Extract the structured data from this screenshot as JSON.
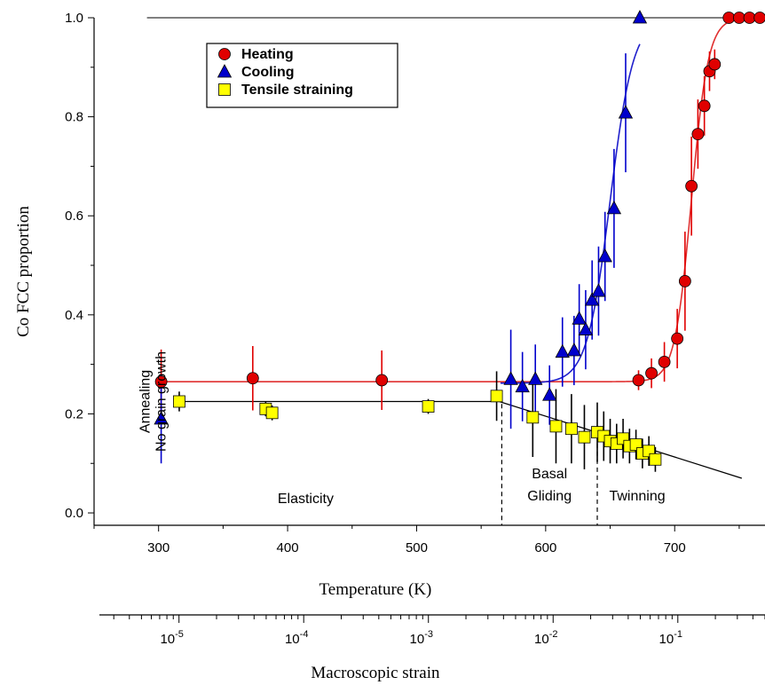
{
  "chart_data": {
    "type": "scatter",
    "ylabel": "Co FCC proportion",
    "xlabel": "Temperature (K)",
    "secondary_xlabel": "Macroscopic strain",
    "xlim": [
      250,
      770
    ],
    "ylim": [
      -0.025,
      1.0
    ],
    "x_ticks": [
      "300",
      "400",
      "500",
      "600",
      "700"
    ],
    "y_ticks": [
      "0.0",
      "0.2",
      "0.4",
      "0.6",
      "0.8",
      "1.0"
    ],
    "strain_ticks": [
      {
        "base": "10",
        "exp": "-5",
        "value": 1e-05
      },
      {
        "base": "10",
        "exp": "-4",
        "value": 0.0001
      },
      {
        "base": "10",
        "exp": "-3",
        "value": 0.001
      },
      {
        "base": "10",
        "exp": "-2",
        "value": 0.01
      },
      {
        "base": "10",
        "exp": "-1",
        "value": 0.1
      }
    ],
    "strain_axis_range": [
      2.3e-06,
      0.5
    ],
    "grid": false,
    "legend_position": "top-left",
    "colors": {
      "heating": "#e00000",
      "cooling": "#0000cc",
      "tensile": "#ffff00",
      "fit_heating": "#e03030",
      "fit_cooling": "#2020cc",
      "fit_tensile": "#000000"
    },
    "series": [
      {
        "name": "Heating",
        "marker": "circle",
        "points": [
          {
            "x": 302,
            "y": 0.265,
            "err": 0.065
          },
          {
            "x": 373,
            "y": 0.272,
            "err": 0.065
          },
          {
            "x": 473,
            "y": 0.268,
            "err": 0.06
          },
          {
            "x": 672,
            "y": 0.268,
            "err": 0.02
          },
          {
            "x": 682,
            "y": 0.282,
            "err": 0.03
          },
          {
            "x": 692,
            "y": 0.305,
            "err": 0.04
          },
          {
            "x": 702,
            "y": 0.352,
            "err": 0.06
          },
          {
            "x": 708,
            "y": 0.468,
            "err": 0.1
          },
          {
            "x": 713,
            "y": 0.66,
            "err": 0.1
          },
          {
            "x": 718,
            "y": 0.765,
            "err": 0.07
          },
          {
            "x": 723,
            "y": 0.822,
            "err": 0.06
          },
          {
            "x": 727,
            "y": 0.892,
            "err": 0.04
          },
          {
            "x": 731,
            "y": 0.906,
            "err": 0.03
          },
          {
            "x": 742,
            "y": 1.0,
            "err": 0
          },
          {
            "x": 750,
            "y": 1.0,
            "err": 0
          },
          {
            "x": 758,
            "y": 1.0,
            "err": 0
          },
          {
            "x": 766,
            "y": 1.0,
            "err": 0
          }
        ]
      },
      {
        "name": "Cooling",
        "marker": "triangle",
        "points": [
          {
            "x": 302,
            "y": 0.19,
            "err": 0.09
          },
          {
            "x": 573,
            "y": 0.27,
            "err": 0.1
          },
          {
            "x": 582,
            "y": 0.255,
            "err": 0.07
          },
          {
            "x": 592,
            "y": 0.27,
            "err": 0.07
          },
          {
            "x": 603,
            "y": 0.238,
            "err": 0.06
          },
          {
            "x": 613,
            "y": 0.325,
            "err": 0.07
          },
          {
            "x": 622,
            "y": 0.328,
            "err": 0.07
          },
          {
            "x": 626,
            "y": 0.392,
            "err": 0.07
          },
          {
            "x": 631,
            "y": 0.37,
            "err": 0.08
          },
          {
            "x": 636,
            "y": 0.43,
            "err": 0.08
          },
          {
            "x": 641,
            "y": 0.448,
            "err": 0.09
          },
          {
            "x": 646,
            "y": 0.518,
            "err": 0.09
          },
          {
            "x": 653,
            "y": 0.615,
            "err": 0.12
          },
          {
            "x": 662,
            "y": 0.808,
            "err": 0.12
          },
          {
            "x": 673,
            "y": 1.0,
            "err": 0
          }
        ]
      },
      {
        "name": "Tensile straining",
        "marker": "square",
        "points": [
          {
            "x": 316,
            "y": 0.225,
            "err": 0.02
          },
          {
            "x": 383,
            "y": 0.21,
            "err": 0.015
          },
          {
            "x": 388,
            "y": 0.202,
            "err": 0.015
          },
          {
            "x": 509,
            "y": 0.215,
            "err": 0.015
          },
          {
            "x": 562,
            "y": 0.236,
            "err": 0.05
          },
          {
            "x": 590,
            "y": 0.193,
            "err": 0.08
          },
          {
            "x": 608,
            "y": 0.175,
            "err": 0.075
          },
          {
            "x": 620,
            "y": 0.17,
            "err": 0.07
          },
          {
            "x": 630,
            "y": 0.153,
            "err": 0.065
          },
          {
            "x": 640,
            "y": 0.163,
            "err": 0.06
          },
          {
            "x": 645,
            "y": 0.155,
            "err": 0.05
          },
          {
            "x": 650,
            "y": 0.145,
            "err": 0.045
          },
          {
            "x": 655,
            "y": 0.14,
            "err": 0.04
          },
          {
            "x": 660,
            "y": 0.15,
            "err": 0.04
          },
          {
            "x": 665,
            "y": 0.135,
            "err": 0.035
          },
          {
            "x": 670,
            "y": 0.138,
            "err": 0.03
          },
          {
            "x": 675,
            "y": 0.12,
            "err": 0.03
          },
          {
            "x": 680,
            "y": 0.125,
            "err": 0.03
          },
          {
            "x": 685,
            "y": 0.108,
            "err": 0.025
          }
        ]
      }
    ],
    "annotations": [
      {
        "lines": [
          "Annealing",
          "No grain growth"
        ],
        "rotated": true
      },
      {
        "lines": [
          "Elasticity"
        ]
      },
      {
        "lines": [
          "Basal",
          "Gliding"
        ]
      },
      {
        "lines": [
          "Twinning"
        ]
      }
    ],
    "dividers_x": [
      566,
      640
    ]
  }
}
